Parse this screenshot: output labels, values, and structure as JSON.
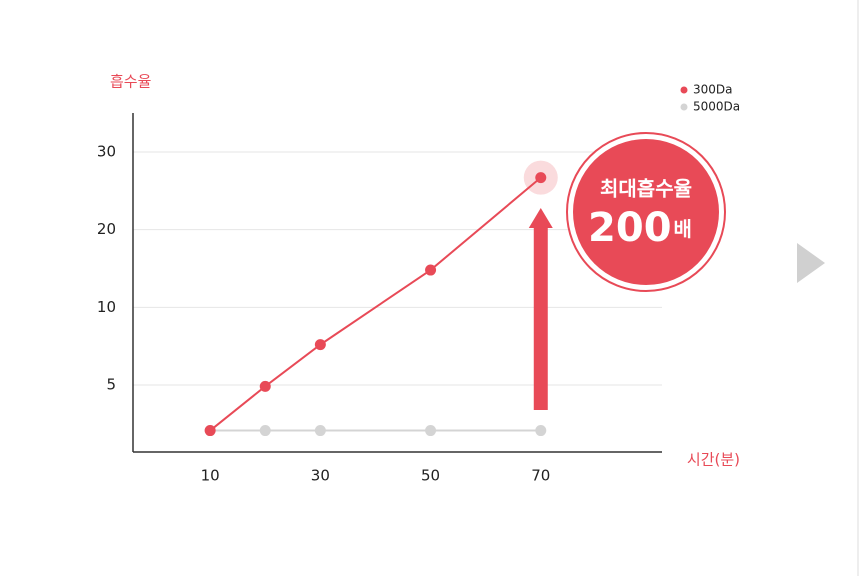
{
  "chart_data": {
    "type": "line",
    "y_label": "흡수율",
    "x_label": "시간(분)",
    "x": [
      10,
      20,
      30,
      50,
      70
    ],
    "series": [
      {
        "name": "300Da",
        "color": "#e84a57",
        "values": [
          1.6,
          4.9,
          7.6,
          14.8,
          26.7
        ]
      },
      {
        "name": "5000Da",
        "color": "#d4d4d4",
        "values": [
          1.6,
          1.6,
          1.6,
          1.6,
          1.6
        ]
      }
    ],
    "xlim": [
      -4,
      92
    ],
    "xticks": [
      10,
      30,
      50,
      70
    ],
    "ylim": [
      0,
      35
    ],
    "yticks": [
      5,
      10,
      20,
      30
    ],
    "grid": true,
    "legend": "top-right",
    "annotation": {
      "line1": "최대흡수율",
      "value": "200",
      "unit": "배"
    }
  }
}
